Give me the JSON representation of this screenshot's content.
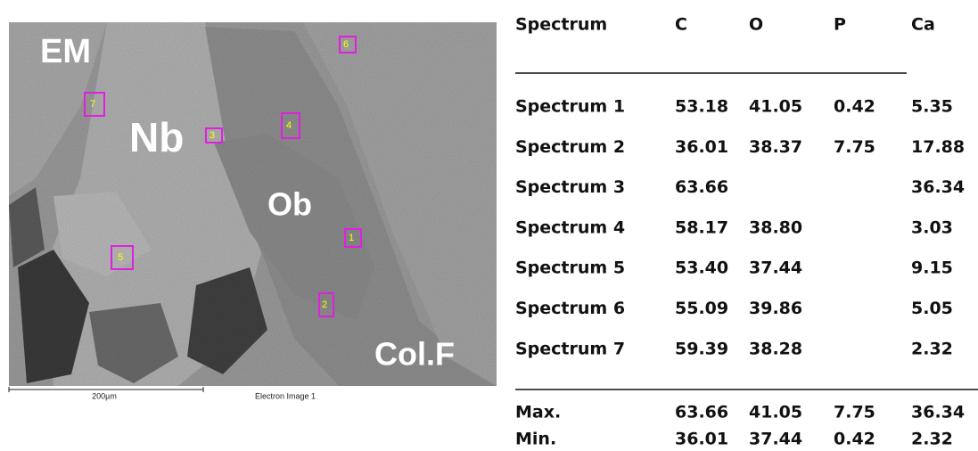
{
  "image": {
    "labels": [
      "EM",
      "Nb",
      "Ob",
      "Col.F"
    ],
    "markers": [
      "7",
      "3",
      "4",
      "6",
      "1",
      "5",
      "2"
    ],
    "scale_bar": "200µm",
    "caption": "Electron Image 1"
  },
  "table": {
    "header": [
      "Spectrum",
      "C",
      "O",
      "P",
      "Ca"
    ],
    "rows": [
      [
        "Spectrum 1",
        "53.18",
        "41.05",
        "0.42",
        "5.35"
      ],
      [
        "Spectrum 2",
        "36.01",
        "38.37",
        "7.75",
        "17.88"
      ],
      [
        "Spectrum 3",
        "63.66",
        null,
        null,
        "36.34"
      ],
      [
        "Spectrum 4",
        "58.17",
        "38.80",
        null,
        "3.03"
      ],
      [
        "Spectrum 5",
        "53.40",
        "37.44",
        null,
        "9.15"
      ],
      [
        "Spectrum 6",
        "55.09",
        "39.86",
        null,
        "5.05"
      ],
      [
        "Spectrum 7",
        "59.39",
        "38.28",
        null,
        "2.32"
      ]
    ],
    "summary": [
      [
        "Max.",
        "63.66",
        "41.05",
        "7.75",
        "36.34"
      ],
      [
        "Min.",
        "36.01",
        "37.44",
        "0.42",
        "2.32"
      ]
    ]
  }
}
